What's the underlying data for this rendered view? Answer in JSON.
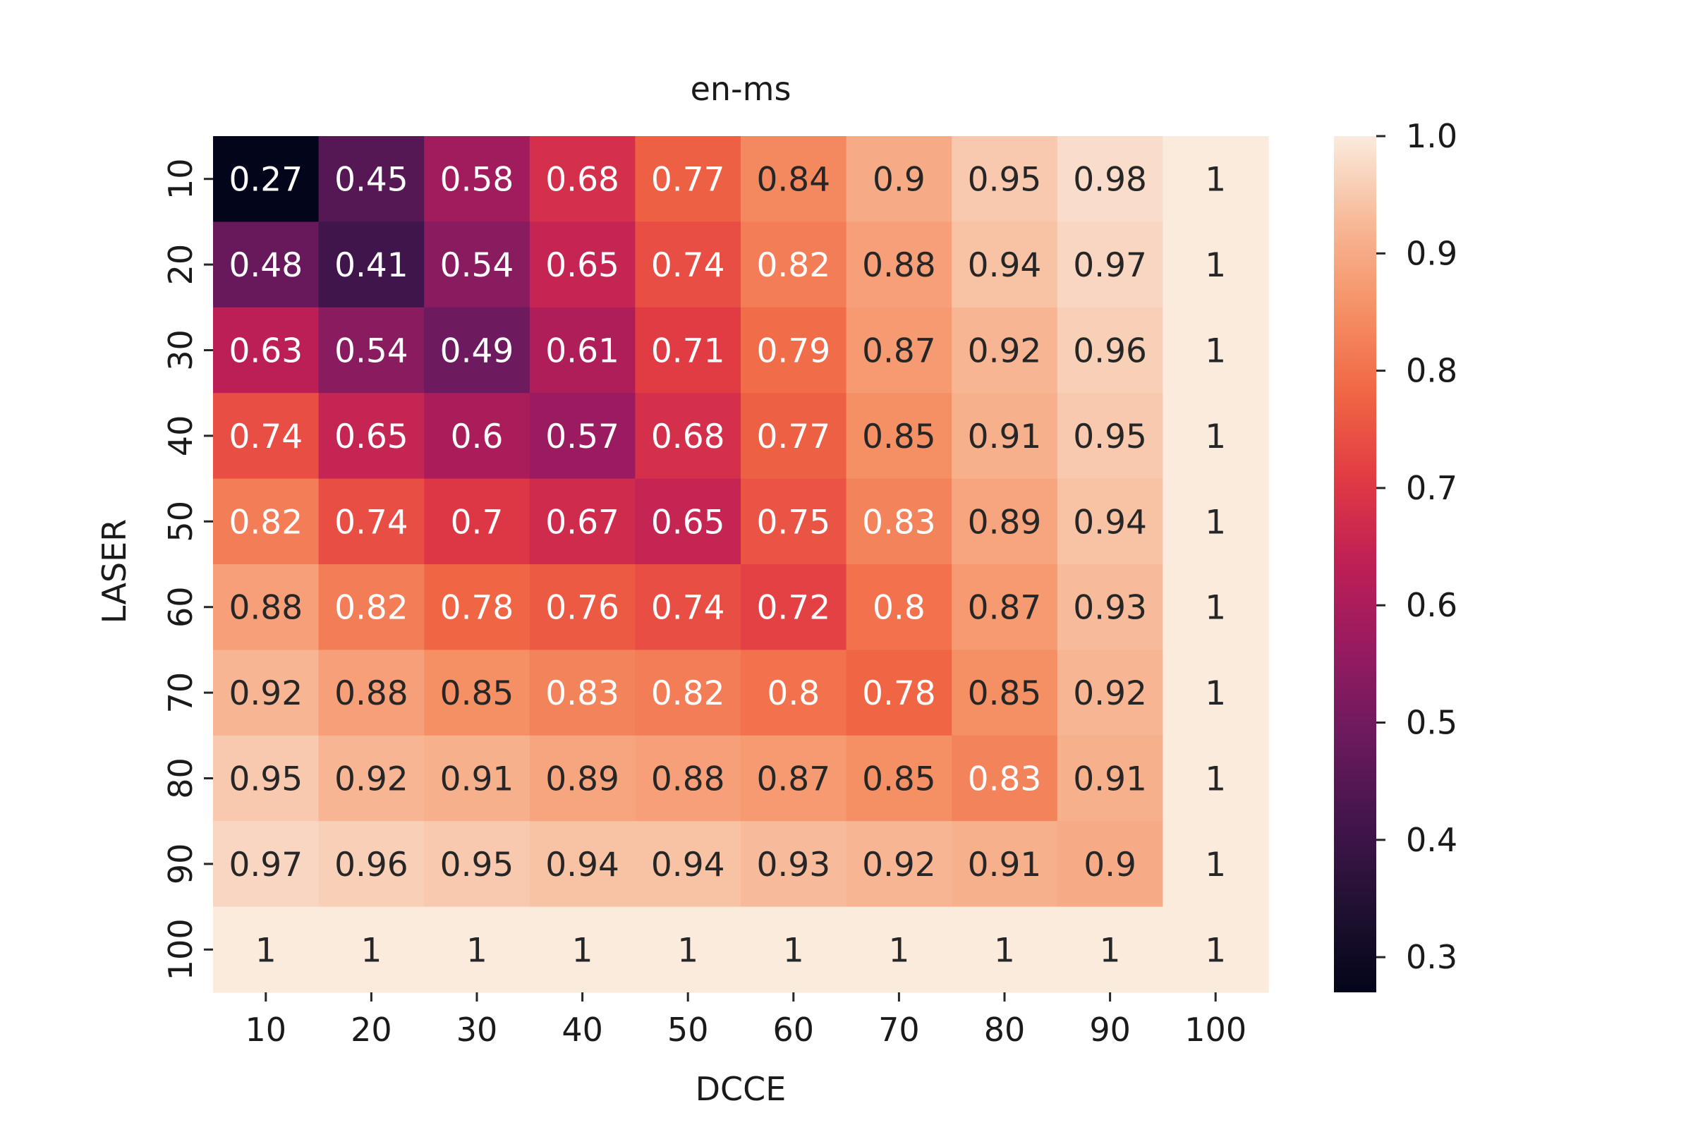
{
  "chart_data": {
    "type": "heatmap",
    "title": "en-ms",
    "xlabel": "DCCE",
    "ylabel": "LASER",
    "x_categories": [
      "10",
      "20",
      "30",
      "40",
      "50",
      "60",
      "70",
      "80",
      "90",
      "100"
    ],
    "y_categories": [
      "10",
      "20",
      "30",
      "40",
      "50",
      "60",
      "70",
      "80",
      "90",
      "100"
    ],
    "values": [
      [
        0.27,
        0.45,
        0.58,
        0.68,
        0.77,
        0.84,
        0.9,
        0.95,
        0.98,
        1
      ],
      [
        0.48,
        0.41,
        0.54,
        0.65,
        0.74,
        0.82,
        0.88,
        0.94,
        0.97,
        1
      ],
      [
        0.63,
        0.54,
        0.49,
        0.61,
        0.71,
        0.79,
        0.87,
        0.92,
        0.96,
        1
      ],
      [
        0.74,
        0.65,
        0.6,
        0.57,
        0.68,
        0.77,
        0.85,
        0.91,
        0.95,
        1
      ],
      [
        0.82,
        0.74,
        0.7,
        0.67,
        0.65,
        0.75,
        0.83,
        0.89,
        0.94,
        1
      ],
      [
        0.88,
        0.82,
        0.78,
        0.76,
        0.74,
        0.72,
        0.8,
        0.87,
        0.93,
        1
      ],
      [
        0.92,
        0.88,
        0.85,
        0.83,
        0.82,
        0.8,
        0.78,
        0.85,
        0.92,
        1
      ],
      [
        0.95,
        0.92,
        0.91,
        0.89,
        0.88,
        0.87,
        0.85,
        0.83,
        0.91,
        1
      ],
      [
        0.97,
        0.96,
        0.95,
        0.94,
        0.94,
        0.93,
        0.92,
        0.91,
        0.9,
        1
      ],
      [
        1,
        1,
        1,
        1,
        1,
        1,
        1,
        1,
        1,
        1
      ]
    ],
    "colorbar": {
      "range": [
        0.27,
        1.0
      ],
      "ticks": [
        0.3,
        0.4,
        0.5,
        0.6,
        0.7,
        0.8,
        0.9,
        1.0
      ],
      "tick_labels": [
        "0.3",
        "0.4",
        "0.5",
        "0.6",
        "0.7",
        "0.8",
        "0.9",
        "1.0"
      ],
      "colormap": "rocket"
    },
    "annotations": true,
    "grid": false
  }
}
